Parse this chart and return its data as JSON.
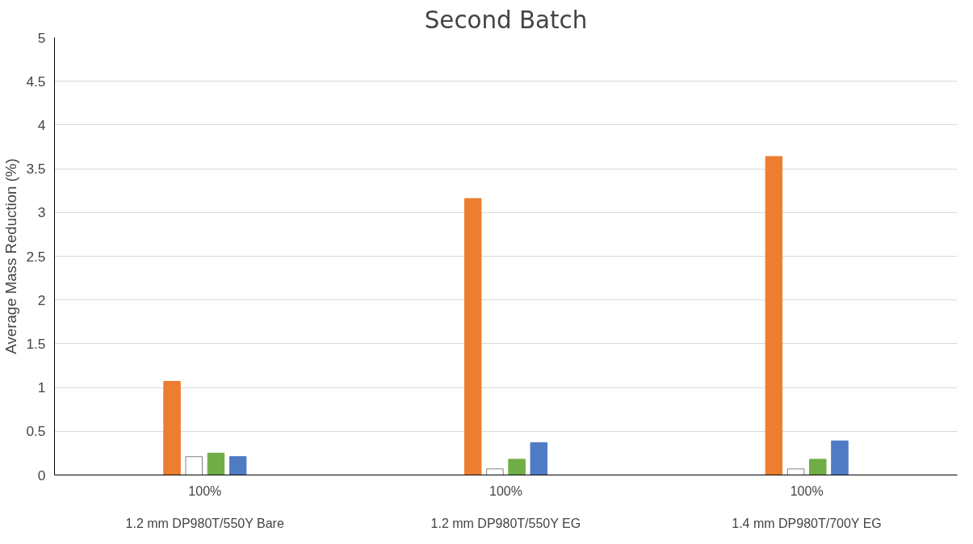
{
  "chart_data": {
    "type": "bar",
    "title": "Second Batch",
    "ylabel": "Average Mass Reduction (%)",
    "categories": [
      "100%\n1.2 mm DP980T/550Y Bare",
      "100%\n1.2 mm DP980T/550Y EG",
      "100%\n1.4 mm DP980T/700Y EG"
    ],
    "series": [
      {
        "color": "#ed7d31",
        "values": [
          1.07,
          3.16,
          3.64
        ]
      },
      {
        "color": "#ffffff",
        "values": [
          0.21,
          0.07,
          0.07
        ]
      },
      {
        "color": "#70ad47",
        "values": [
          0.25,
          0.18,
          0.18
        ]
      },
      {
        "color": "#4f7bc4",
        "values": [
          0.21,
          0.37,
          0.39
        ]
      }
    ],
    "ylim": [
      0,
      5
    ],
    "yticks": [
      0,
      0.5,
      1,
      1.5,
      2,
      2.5,
      3,
      3.5,
      4,
      4.5,
      5
    ],
    "grid": "y"
  }
}
